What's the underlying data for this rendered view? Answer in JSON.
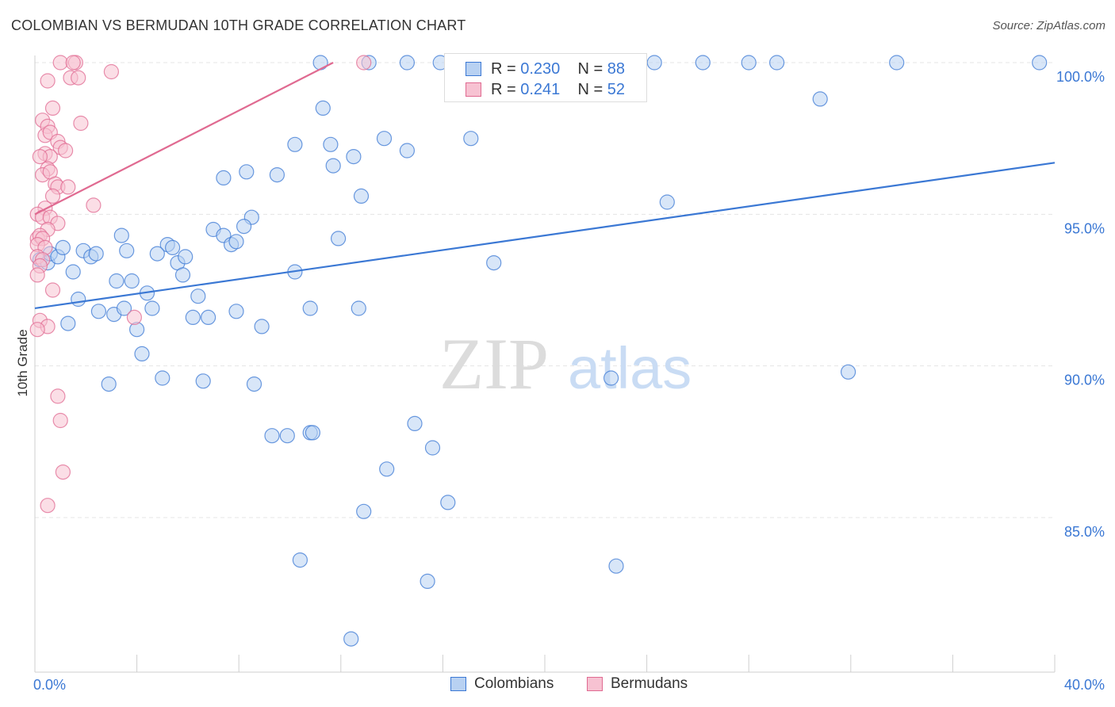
{
  "title": "COLOMBIAN VS BERMUDAN 10TH GRADE CORRELATION CHART",
  "source": "Source: ZipAtlas.com",
  "watermark": {
    "zip": "ZIP",
    "atlas": "atlas"
  },
  "colors": {
    "blue": "#3b78d4",
    "blue_fill": "#b8d1f2",
    "pink": "#e06a91",
    "pink_fill": "#f7c2d2",
    "grid": "#e4e4e4",
    "axis_text": "#3b78d4"
  },
  "legend": {
    "blue": {
      "r_label": "R = ",
      "r_value": "0.230",
      "n_label": "N = ",
      "n_value": "88"
    },
    "pink": {
      "r_label": "R = ",
      "r_value": "0.241",
      "n_label": "N = ",
      "n_value": "52"
    }
  },
  "bottom_legend": {
    "colombians": "Colombians",
    "bermudans": "Bermudans"
  },
  "chart_data": {
    "type": "scatter",
    "title": "COLOMBIAN VS BERMUDAN 10TH GRADE CORRELATION CHART",
    "xlabel": "",
    "ylabel": "10th Grade",
    "xlim": [
      0,
      40
    ],
    "ylim": [
      80.3,
      100.6
    ],
    "x_tick_labels": [
      {
        "value": 0,
        "label": "0.0%"
      },
      {
        "value": 40,
        "label": "40.0%"
      }
    ],
    "y_tick_labels": [
      {
        "value": 100,
        "label": "100.0%"
      },
      {
        "value": 95,
        "label": "95.0%"
      },
      {
        "value": 90,
        "label": "90.0%"
      },
      {
        "value": 85,
        "label": "85.0%"
      }
    ],
    "series": [
      {
        "name": "Colombians",
        "color": "#3b78d4",
        "points": [
          [
            11.2,
            100
          ],
          [
            13.1,
            100
          ],
          [
            14.6,
            100
          ],
          [
            15.9,
            100
          ],
          [
            20.1,
            100
          ],
          [
            24.3,
            100
          ],
          [
            26.2,
            100
          ],
          [
            28.0,
            100
          ],
          [
            29.1,
            100
          ],
          [
            33.8,
            100
          ],
          [
            39.4,
            100
          ],
          [
            11.3,
            98.5
          ],
          [
            30.8,
            98.8
          ],
          [
            10.2,
            97.3
          ],
          [
            11.6,
            97.3
          ],
          [
            13.7,
            97.5
          ],
          [
            14.6,
            97.1
          ],
          [
            17.1,
            97.5
          ],
          [
            11.7,
            96.6
          ],
          [
            12.5,
            96.9
          ],
          [
            7.4,
            96.2
          ],
          [
            8.3,
            96.4
          ],
          [
            9.5,
            96.3
          ],
          [
            12.8,
            95.6
          ],
          [
            24.8,
            95.4
          ],
          [
            8.5,
            94.9
          ],
          [
            7.0,
            94.5
          ],
          [
            7.4,
            94.3
          ],
          [
            8.2,
            94.6
          ],
          [
            3.4,
            94.3
          ],
          [
            5.2,
            94.0
          ],
          [
            7.7,
            94.0
          ],
          [
            7.9,
            94.1
          ],
          [
            11.9,
            94.2
          ],
          [
            0.2,
            93.5
          ],
          [
            0.5,
            93.4
          ],
          [
            0.6,
            93.7
          ],
          [
            0.9,
            93.6
          ],
          [
            1.1,
            93.9
          ],
          [
            1.9,
            93.8
          ],
          [
            2.2,
            93.6
          ],
          [
            2.4,
            93.7
          ],
          [
            3.6,
            93.8
          ],
          [
            4.8,
            93.7
          ],
          [
            5.6,
            93.4
          ],
          [
            5.9,
            93.6
          ],
          [
            5.4,
            93.9
          ],
          [
            1.5,
            93.1
          ],
          [
            18.0,
            93.4
          ],
          [
            3.2,
            92.8
          ],
          [
            3.8,
            92.8
          ],
          [
            5.8,
            93.0
          ],
          [
            10.2,
            93.1
          ],
          [
            1.7,
            92.2
          ],
          [
            4.4,
            92.4
          ],
          [
            6.4,
            92.3
          ],
          [
            2.5,
            91.8
          ],
          [
            3.1,
            91.7
          ],
          [
            3.5,
            91.9
          ],
          [
            4.6,
            91.9
          ],
          [
            6.2,
            91.6
          ],
          [
            6.8,
            91.6
          ],
          [
            7.9,
            91.8
          ],
          [
            10.8,
            91.9
          ],
          [
            12.7,
            91.9
          ],
          [
            1.3,
            91.4
          ],
          [
            4.0,
            91.2
          ],
          [
            8.9,
            91.3
          ],
          [
            4.2,
            90.4
          ],
          [
            5.0,
            89.6
          ],
          [
            2.9,
            89.4
          ],
          [
            6.6,
            89.5
          ],
          [
            8.6,
            89.4
          ],
          [
            22.6,
            89.6
          ],
          [
            31.9,
            89.8
          ],
          [
            9.3,
            87.7
          ],
          [
            9.9,
            87.7
          ],
          [
            10.8,
            87.8
          ],
          [
            10.9,
            87.8
          ],
          [
            14.9,
            88.1
          ],
          [
            15.6,
            87.3
          ],
          [
            13.8,
            86.6
          ],
          [
            12.9,
            85.2
          ],
          [
            16.2,
            85.5
          ],
          [
            10.4,
            83.6
          ],
          [
            15.4,
            82.9
          ],
          [
            22.8,
            83.4
          ],
          [
            12.4,
            81.0
          ]
        ]
      },
      {
        "name": "Bermudans",
        "color": "#e06a91",
        "points": [
          [
            1.0,
            100
          ],
          [
            1.6,
            100
          ],
          [
            1.5,
            100
          ],
          [
            12.9,
            100
          ],
          [
            3.0,
            99.7
          ],
          [
            1.4,
            99.5
          ],
          [
            1.7,
            99.5
          ],
          [
            0.5,
            99.4
          ],
          [
            0.7,
            98.5
          ],
          [
            0.3,
            98.1
          ],
          [
            1.8,
            98.0
          ],
          [
            0.5,
            97.9
          ],
          [
            0.4,
            97.6
          ],
          [
            0.6,
            97.7
          ],
          [
            0.9,
            97.4
          ],
          [
            1.0,
            97.2
          ],
          [
            1.2,
            97.1
          ],
          [
            0.4,
            97.0
          ],
          [
            0.6,
            96.9
          ],
          [
            0.2,
            96.9
          ],
          [
            0.5,
            96.5
          ],
          [
            0.3,
            96.3
          ],
          [
            0.6,
            96.4
          ],
          [
            0.8,
            96.0
          ],
          [
            0.9,
            95.9
          ],
          [
            1.3,
            95.9
          ],
          [
            0.7,
            95.6
          ],
          [
            0.4,
            95.2
          ],
          [
            2.3,
            95.3
          ],
          [
            0.1,
            95.0
          ],
          [
            0.3,
            94.9
          ],
          [
            0.6,
            94.9
          ],
          [
            0.9,
            94.7
          ],
          [
            0.5,
            94.5
          ],
          [
            0.1,
            94.2
          ],
          [
            0.2,
            94.3
          ],
          [
            0.3,
            94.2
          ],
          [
            0.1,
            94.0
          ],
          [
            0.4,
            93.9
          ],
          [
            0.1,
            93.6
          ],
          [
            0.3,
            93.5
          ],
          [
            0.2,
            93.3
          ],
          [
            0.1,
            93.0
          ],
          [
            0.7,
            92.5
          ],
          [
            3.9,
            91.6
          ],
          [
            0.2,
            91.5
          ],
          [
            0.5,
            91.3
          ],
          [
            0.1,
            91.2
          ],
          [
            0.9,
            89.0
          ],
          [
            1.0,
            88.2
          ],
          [
            1.1,
            86.5
          ],
          [
            0.5,
            85.4
          ]
        ]
      }
    ],
    "trendlines": [
      {
        "series": "Colombians",
        "from": [
          0,
          91.9
        ],
        "to": [
          40,
          96.7
        ]
      },
      {
        "series": "Bermudans",
        "from": [
          0,
          95.0
        ],
        "to": [
          11.7,
          100.0
        ]
      }
    ]
  }
}
